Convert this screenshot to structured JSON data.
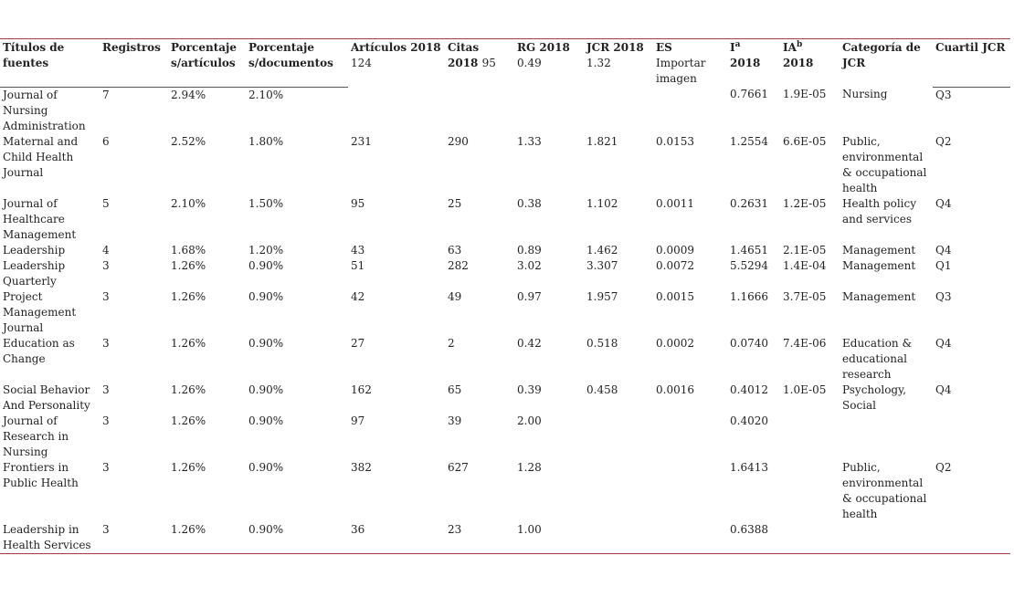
{
  "table": {
    "header": [
      {
        "label": "Títulos de fuentes"
      },
      {
        "label": "Registros"
      },
      {
        "label": "Porcentaje s/artículos"
      },
      {
        "label": "Porcentaje s/documentos"
      },
      {
        "label": "Artículos 2018",
        "extra": "124"
      },
      {
        "label": "Citas 2018",
        "extra": "95"
      },
      {
        "label": "RG 2018",
        "extra": "0.49"
      },
      {
        "label": "JCR 2018",
        "extra": "1.32"
      },
      {
        "label": "ES",
        "extra": "Importar imagen"
      },
      {
        "label": "I",
        "sup": "a",
        "year": "2018"
      },
      {
        "label": "IA",
        "sup": "b",
        "year": "2018"
      },
      {
        "label": "Categoría de JCR"
      },
      {
        "label": "Cuartil JCR"
      }
    ],
    "rows": [
      [
        "Journal of Nursing Administration",
        "7",
        "2.94%",
        "2.10%",
        null,
        null,
        null,
        null,
        null,
        "0.7661",
        "1.9E-05",
        "Nursing",
        "Q3"
      ],
      [
        "Maternal and Child Health Journal",
        "6",
        "2.52%",
        "1.80%",
        "231",
        "290",
        "1.33",
        "1.821",
        "0.0153",
        "1.2554",
        "6.6E-05",
        "Public, environmental & occupational health",
        "Q2"
      ],
      [
        "Journal of Healthcare Management",
        "5",
        "2.10%",
        "1.50%",
        "95",
        "25",
        "0.38",
        "1.102",
        "0.0011",
        "0.2631",
        "1.2E-05",
        "Health policy and services",
        "Q4"
      ],
      [
        "Leadership",
        "4",
        "1.68%",
        "1.20%",
        "43",
        "63",
        "0.89",
        "1.462",
        "0.0009",
        "1.4651",
        "2.1E-05",
        "Management",
        "Q4"
      ],
      [
        "Leadership Quarterly",
        "3",
        "1.26%",
        "0.90%",
        "51",
        "282",
        "3.02",
        "3.307",
        "0.0072",
        "5.5294",
        "1.4E-04",
        "Management",
        "Q1"
      ],
      [
        "Project Management Journal",
        "3",
        "1.26%",
        "0.90%",
        "42",
        "49",
        "0.97",
        "1.957",
        "0.0015",
        "1.1666",
        "3.7E-05",
        "Management",
        "Q3"
      ],
      [
        "Education as Change",
        "3",
        "1.26%",
        "0.90%",
        "27",
        "2",
        "0.42",
        "0.518",
        "0.0002",
        "0.0740",
        "7.4E-06",
        "Education & educational research",
        "Q4"
      ],
      [
        "Social Behavior And Personality",
        "3",
        "1.26%",
        "0.90%",
        "162",
        "65",
        "0.39",
        "0.458",
        "0.0016",
        "0.4012",
        "1.0E-05",
        "Psychology, Social",
        "Q4"
      ],
      [
        "Journal of Research in Nursing",
        "3",
        "1.26%",
        "0.90%",
        "97",
        "39",
        "2.00",
        null,
        null,
        "0.4020",
        null,
        null,
        null
      ],
      [
        "Frontiers in Public Health",
        "3",
        "1.26%",
        "0.90%",
        "382",
        "627",
        "1.28",
        null,
        null,
        "1.6413",
        null,
        "Public, environmental & occupational health",
        "Q2"
      ],
      [
        "Leadership in Health Services",
        "3",
        "1.26%",
        "0.90%",
        "36",
        "23",
        "1.00",
        null,
        null,
        "0.6388",
        null,
        null,
        null
      ]
    ]
  }
}
